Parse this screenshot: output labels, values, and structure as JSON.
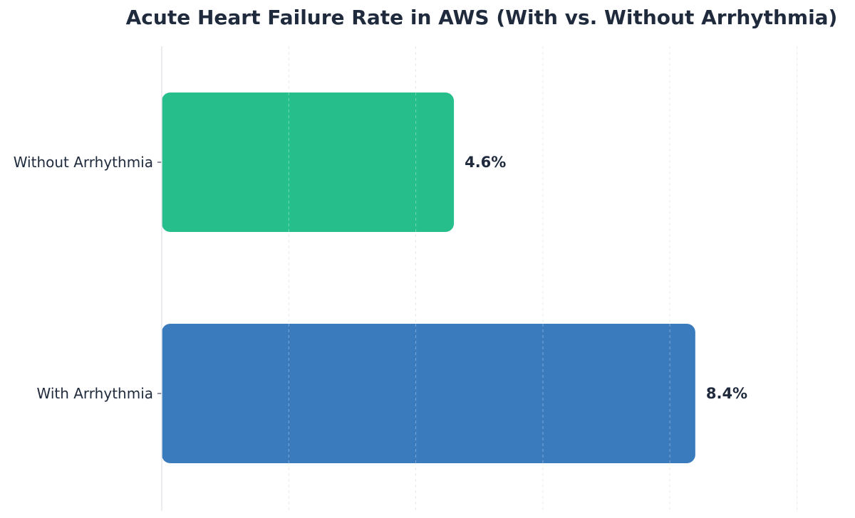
{
  "chart_data": {
    "type": "bar",
    "orientation": "horizontal",
    "title": "Acute Heart Failure Rate in AWS (With vs. Without Arrhythmia)",
    "xlabel": "",
    "ylabel": "",
    "categories": [
      "With Arrhythmia",
      "Without Arrhythmia"
    ],
    "values": [
      8.4,
      4.6
    ],
    "data_labels": [
      "8.4%",
      "4.6%"
    ],
    "colors": [
      "#3a7bbd",
      "#26bf8c"
    ],
    "xlim": [
      0,
      10
    ],
    "grid": true,
    "grid_axis": "x",
    "legend": "none"
  },
  "colors": {
    "text": "#1f2a3c",
    "grid": "#e6e9ee",
    "axis": "#e3e6ea"
  }
}
